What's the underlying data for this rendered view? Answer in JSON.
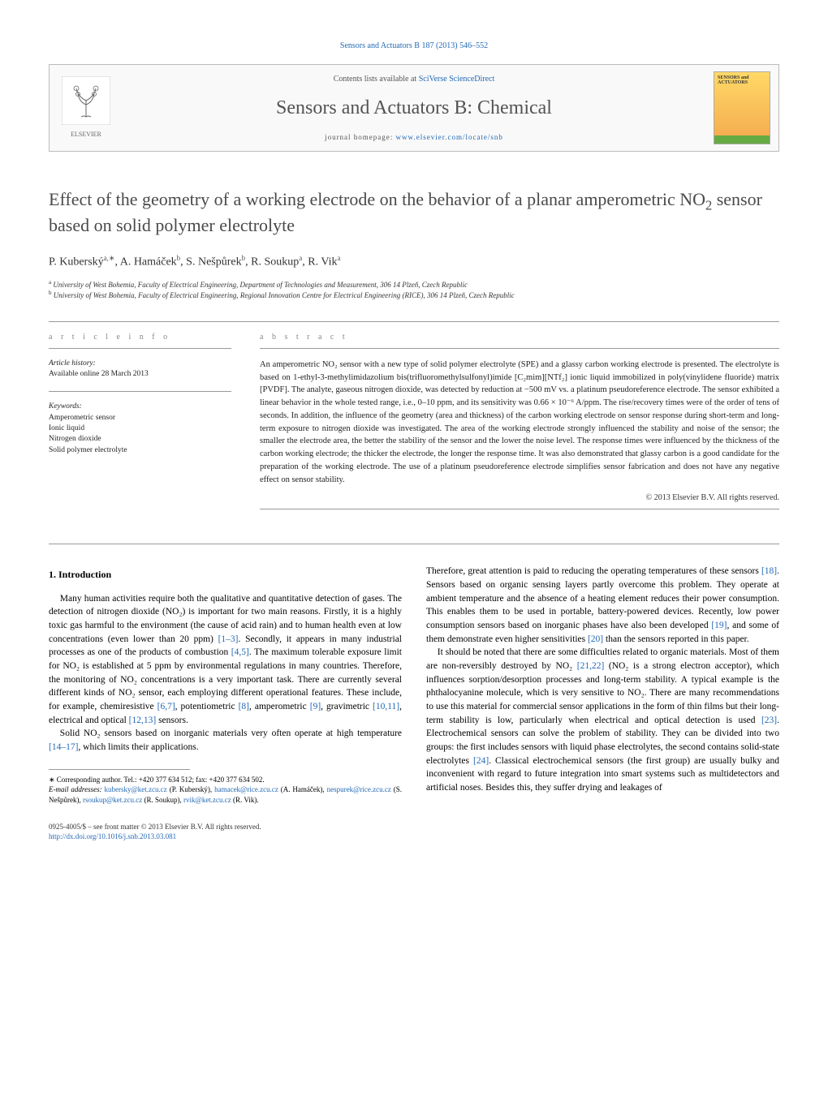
{
  "header": {
    "citation": "Sensors and Actuators B 187 (2013) 546–552",
    "contents_prefix": "Contents lists available at ",
    "contents_link": "SciVerse ScienceDirect",
    "journal_name": "Sensors and Actuators B: Chemical",
    "homepage_label": "journal homepage: ",
    "homepage_url": "www.elsevier.com/locate/snb",
    "publisher_name": "ELSEVIER",
    "cover_label": "SENSORS and ACTUATORS"
  },
  "article": {
    "title_pre": "Effect of the geometry of a working electrode on the behavior of a planar amperometric NO",
    "title_sub": "2",
    "title_post": " sensor based on solid polymer electrolyte",
    "authors_html": "P. Kuberský",
    "authors": [
      {
        "name": "P. Kuberský",
        "aff": "a,",
        "corr": "∗"
      },
      {
        "name": "A. Hamáček",
        "aff": "b",
        "corr": ""
      },
      {
        "name": "S. Nešpůrek",
        "aff": "b",
        "corr": ""
      },
      {
        "name": "R. Soukup",
        "aff": "a",
        "corr": ""
      },
      {
        "name": "R. Vik",
        "aff": "a",
        "corr": ""
      }
    ],
    "affiliations": [
      {
        "mark": "a",
        "text": "University of West Bohemia, Faculty of Electrical Engineering, Department of Technologies and Measurement, 306 14 Plzeň, Czech Republic"
      },
      {
        "mark": "b",
        "text": "University of West Bohemia, Faculty of Electrical Engineering, Regional Innovation Centre for Electrical Engineering (RICE), 306 14 Plzeň, Czech Republic"
      }
    ]
  },
  "info": {
    "heading": "a r t i c l e   i n f o",
    "history_label": "Article history:",
    "history_text": "Available online 28 March 2013",
    "keywords_label": "Keywords:",
    "keywords": [
      "Amperometric sensor",
      "Ionic liquid",
      "Nitrogen dioxide",
      "Solid polymer electrolyte"
    ]
  },
  "abstract": {
    "heading": "a b s t r a c t",
    "text": "An amperometric NO₂ sensor with a new type of solid polymer electrolyte (SPE) and a glassy carbon working electrode is presented. The electrolyte is based on 1-ethyl-3-methylimidazolium bis(trifluoromethylsulfonyl)imide [C₂mim][NTf₂] ionic liquid immobilized in poly(vinylidene fluoride) matrix [PVDF]. The analyte, gaseous nitrogen dioxide, was detected by reduction at −500 mV vs. a platinum pseudoreference electrode. The sensor exhibited a linear behavior in the whole tested range, i.e., 0–10 ppm, and its sensitivity was 0.66 × 10⁻⁶ A/ppm. The rise/recovery times were of the order of tens of seconds. In addition, the influence of the geometry (area and thickness) of the carbon working electrode on sensor response during short-term and long-term exposure to nitrogen dioxide was investigated. The area of the working electrode strongly influenced the stability and noise of the sensor; the smaller the electrode area, the better the stability of the sensor and the lower the noise level. The response times were influenced by the thickness of the carbon working electrode; the thicker the electrode, the longer the response time. It was also demonstrated that glassy carbon is a good candidate for the preparation of the working electrode. The use of a platinum pseudoreference electrode simplifies sensor fabrication and does not have any negative effect on sensor stability.",
    "copyright": "© 2013 Elsevier B.V. All rights reserved."
  },
  "body": {
    "section_number": "1.",
    "section_title": "Introduction",
    "col1_p1": "Many human activities require both the qualitative and quantitative detection of gases. The detection of nitrogen dioxide (NO₂) is important for two main reasons. Firstly, it is a highly toxic gas harmful to the environment (the cause of acid rain) and to human health even at low concentrations (even lower than 20 ppm) [1–3]. Secondly, it appears in many industrial processes as one of the products of combustion [4,5]. The maximum tolerable exposure limit for NO₂ is established at 5 ppm by environmental regulations in many countries. Therefore, the monitoring of NO₂ concentrations is a very important task. There are currently several different kinds of NO₂ sensor, each employing different operational features. These include, for example, chemiresistive [6,7], potentiometric [8], amperometric [9], gravimetric [10,11], electrical and optical [12,13] sensors.",
    "col1_p2": "Solid NO₂ sensors based on inorganic materials very often operate at high temperature [14–17], which limits their applications.",
    "col2_p1": "Therefore, great attention is paid to reducing the operating temperatures of these sensors [18]. Sensors based on organic sensing layers partly overcome this problem. They operate at ambient temperature and the absence of a heating element reduces their power consumption. This enables them to be used in portable, battery-powered devices. Recently, low power consumption sensors based on inorganic phases have also been developed [19], and some of them demonstrate even higher sensitivities [20] than the sensors reported in this paper.",
    "col2_p2": "It should be noted that there are some difficulties related to organic materials. Most of them are non-reversibly destroyed by NO₂ [21,22] (NO₂ is a strong electron acceptor), which influences sorption/desorption processes and long-term stability. A typical example is the phthalocyanine molecule, which is very sensitive to NO₂. There are many recommendations to use this material for commercial sensor applications in the form of thin films but their long-term stability is low, particularly when electrical and optical detection is used [23]. Electrochemical sensors can solve the problem of stability. They can be divided into two groups: the first includes sensors with liquid phase electrolytes, the second contains solid-state electrolytes [24]. Classical electrochemical sensors (the first group) are usually bulky and inconvenient with regard to future integration into smart systems such as multidetectors and artificial noses. Besides this, they suffer drying and leakages of"
  },
  "footnotes": {
    "corr_label": "∗ Corresponding author. Tel.: +420 377 634 512; fax: +420 377 634 502.",
    "email_label": "E-mail addresses: ",
    "emails": [
      {
        "addr": "kubersky@ket.zcu.cz",
        "who": "(P. Kuberský)"
      },
      {
        "addr": "hamacek@rice.zcu.cz",
        "who": "(A. Hamáček)"
      },
      {
        "addr": "nespurek@rice.zcu.cz",
        "who": "(S. Nešpůrek)"
      },
      {
        "addr": "rsoukup@ket.zcu.cz",
        "who": "(R. Soukup)"
      },
      {
        "addr": "rvik@ket.zcu.cz",
        "who": "(R. Vik)."
      }
    ]
  },
  "bottom": {
    "issn_line": "0925-4005/$ – see front matter © 2013 Elsevier B.V. All rights reserved.",
    "doi": "http://dx.doi.org/10.1016/j.snb.2013.03.081"
  },
  "colors": {
    "link": "#2369b5",
    "text": "#000000",
    "heading_gray": "#4a4a4a",
    "light_gray": "#888888",
    "border": "#999999"
  }
}
